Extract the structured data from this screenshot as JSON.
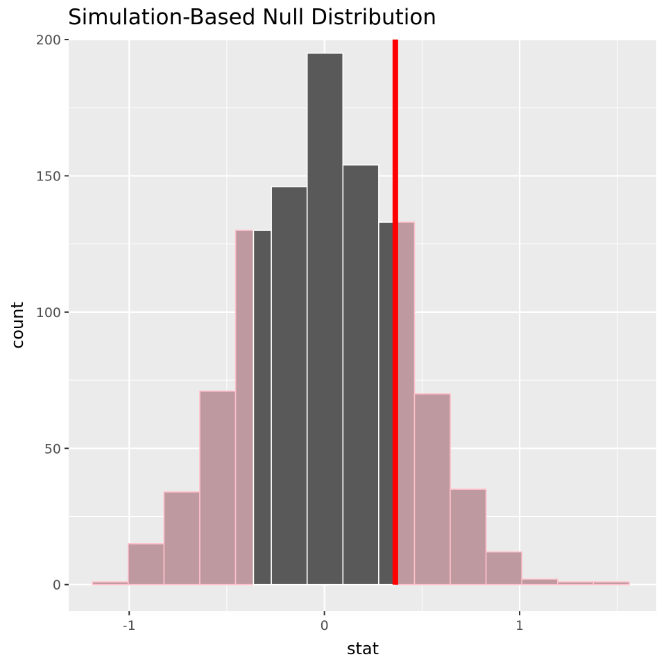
{
  "chart_data": {
    "type": "bar",
    "title": "Simulation-Based Null Distribution",
    "xlabel": "stat",
    "ylabel": "count",
    "xlim": [
      -1.31,
      1.7
    ],
    "ylim": [
      -9.75,
      200
    ],
    "x_ticks": [
      -1,
      0,
      1
    ],
    "x_tick_labels": [
      "-1",
      "0",
      "1"
    ],
    "y_ticks": [
      0,
      50,
      100,
      150,
      200
    ],
    "y_tick_labels": [
      "0",
      "50",
      "100",
      "150",
      "200"
    ],
    "bin_width": 0.1833,
    "bins": [
      {
        "x0": -1.1883,
        "x1": -1.005,
        "count": 1,
        "shaded": true
      },
      {
        "x0": -1.005,
        "x1": -0.8217,
        "count": 15,
        "shaded": true
      },
      {
        "x0": -0.8217,
        "x1": -0.6384,
        "count": 34,
        "shaded": true
      },
      {
        "x0": -0.6384,
        "x1": -0.4551,
        "count": 71,
        "shaded": true
      },
      {
        "x0": -0.4551,
        "x1": -0.3633,
        "count": 130,
        "shaded": true
      },
      {
        "x0": -0.3633,
        "x1": -0.2718,
        "count": 130,
        "shaded": false
      },
      {
        "x0": -0.2718,
        "x1": -0.0885,
        "count": 146,
        "shaded": false
      },
      {
        "x0": -0.0885,
        "x1": 0.0948,
        "count": 195,
        "shaded": false
      },
      {
        "x0": 0.0948,
        "x1": 0.2781,
        "count": 154,
        "shaded": false
      },
      {
        "x0": 0.2781,
        "x1": 0.3633,
        "count": 133,
        "shaded": false
      },
      {
        "x0": 0.3633,
        "x1": 0.4614,
        "count": 133,
        "shaded": true
      },
      {
        "x0": 0.4614,
        "x1": 0.6447,
        "count": 70,
        "shaded": true
      },
      {
        "x0": 0.6447,
        "x1": 0.828,
        "count": 35,
        "shaded": true
      },
      {
        "x0": 0.828,
        "x1": 1.0113,
        "count": 12,
        "shaded": true
      },
      {
        "x0": 1.0113,
        "x1": 1.1946,
        "count": 2,
        "shaded": true
      },
      {
        "x0": 1.1946,
        "x1": 1.3779,
        "count": 1,
        "shaded": true
      },
      {
        "x0": 1.3779,
        "x1": 1.5612,
        "count": 1,
        "shaded": true
      }
    ],
    "observed_stat": 0.3633,
    "colors": {
      "panel": "#ebebeb",
      "grid": "#ffffff",
      "bar_fill": "#595959",
      "bar_stroke": "#ffffff",
      "shade_fill": "#bf99a0",
      "shade_stroke": "#ffc0cb",
      "obs_line": "#ff0000"
    },
    "grid": true,
    "legend": "none"
  }
}
